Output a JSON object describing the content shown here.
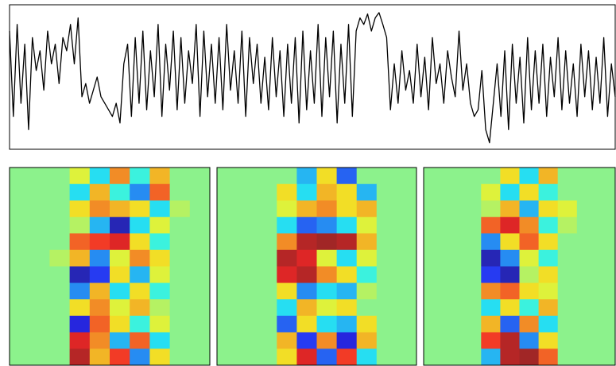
{
  "chart_data": [
    {
      "type": "line",
      "color": "#000000",
      "ylim": [
        -0.05,
        1.05
      ],
      "values": [
        0.85,
        0.2,
        0.9,
        0.3,
        0.75,
        0.1,
        0.8,
        0.55,
        0.7,
        0.4,
        0.85,
        0.6,
        0.75,
        0.45,
        0.8,
        0.7,
        0.9,
        0.6,
        0.95,
        0.35,
        0.45,
        0.3,
        0.4,
        0.5,
        0.35,
        0.3,
        0.25,
        0.2,
        0.3,
        0.15,
        0.6,
        0.75,
        0.2,
        0.8,
        0.3,
        0.85,
        0.25,
        0.7,
        0.35,
        0.9,
        0.2,
        0.75,
        0.4,
        0.85,
        0.25,
        0.8,
        0.3,
        0.7,
        0.45,
        0.9,
        0.2,
        0.85,
        0.35,
        0.75,
        0.3,
        0.8,
        0.25,
        0.9,
        0.4,
        0.7,
        0.3,
        0.85,
        0.2,
        0.8,
        0.45,
        0.75,
        0.3,
        0.65,
        0.25,
        0.8,
        0.35,
        0.7,
        0.2,
        0.75,
        0.3,
        0.8,
        0.15,
        0.85,
        0.25,
        0.7,
        0.3,
        0.9,
        0.2,
        0.8,
        0.35,
        0.85,
        0.15,
        0.75,
        0.3,
        0.9,
        0.2,
        0.85,
        0.95,
        0.9,
        0.98,
        0.85,
        0.95,
        0.99,
        0.9,
        0.8,
        0.25,
        0.6,
        0.3,
        0.7,
        0.4,
        0.55,
        0.3,
        0.75,
        0.35,
        0.65,
        0.25,
        0.8,
        0.45,
        0.6,
        0.3,
        0.7,
        0.5,
        0.35,
        0.85,
        0.4,
        0.6,
        0.3,
        0.2,
        0.25,
        0.55,
        0.1,
        0.0,
        0.3,
        0.6,
        0.2,
        0.7,
        0.1,
        0.75,
        0.3,
        0.65,
        0.15,
        0.8,
        0.25,
        0.7,
        0.3,
        0.75,
        0.2,
        0.65,
        0.35,
        0.8,
        0.25,
        0.7,
        0.3,
        0.6,
        0.2,
        0.75,
        0.35,
        0.7,
        0.25,
        0.65,
        0.3,
        0.8,
        0.2,
        0.6,
        0.35
      ]
    },
    {
      "type": "heatmap",
      "colormap": "jet",
      "clim": [
        -1,
        1
      ],
      "values": [
        [
          0,
          0,
          0,
          0.2,
          -0.3,
          0.5,
          -0.2,
          0.4,
          0,
          0
        ],
        [
          0,
          0,
          0,
          -0.3,
          0.4,
          -0.2,
          -0.5,
          0.6,
          0,
          0
        ],
        [
          0,
          0,
          0,
          0.3,
          0.5,
          0.4,
          0.3,
          -0.3,
          0.1,
          0
        ],
        [
          0,
          0,
          0,
          0.1,
          -0.4,
          -0.9,
          -0.3,
          0.2,
          0,
          0
        ],
        [
          0,
          0,
          0,
          0.6,
          0.7,
          0.8,
          0.3,
          -0.2,
          0,
          0
        ],
        [
          0,
          0,
          0.1,
          0.4,
          -0.5,
          0.2,
          0.5,
          0.3,
          0,
          0
        ],
        [
          0,
          0,
          0,
          -0.9,
          -0.7,
          0.3,
          -0.4,
          0.2,
          0,
          0
        ],
        [
          0,
          0,
          0,
          -0.5,
          0.4,
          -0.3,
          0.3,
          -0.2,
          0,
          0
        ],
        [
          0,
          0,
          0,
          0.3,
          0.5,
          0.2,
          0.4,
          0.1,
          0,
          0
        ],
        [
          0,
          0,
          0,
          -0.8,
          0.6,
          0.3,
          -0.2,
          0.2,
          0,
          0
        ],
        [
          0,
          0,
          0,
          0.8,
          0.5,
          -0.4,
          0.6,
          -0.3,
          0,
          0
        ],
        [
          0,
          0,
          0,
          0.9,
          0.4,
          0.7,
          -0.5,
          0.3,
          0,
          0
        ]
      ]
    },
    {
      "type": "heatmap",
      "colormap": "jet",
      "clim": [
        -1,
        1
      ],
      "values": [
        [
          0,
          0,
          0,
          0,
          -0.4,
          0.3,
          -0.6,
          0,
          0,
          0
        ],
        [
          0,
          0,
          0,
          0.3,
          -0.3,
          0.4,
          0.3,
          -0.4,
          0,
          0
        ],
        [
          0,
          0,
          0,
          0.2,
          0.4,
          0.5,
          0.3,
          0.4,
          0,
          0
        ],
        [
          0,
          0,
          0,
          -0.3,
          -0.6,
          -0.5,
          -0.3,
          0.2,
          0,
          0
        ],
        [
          0,
          0,
          0,
          0.5,
          0.9,
          0.95,
          0.9,
          0.4,
          0,
          0
        ],
        [
          0,
          0,
          0,
          0.9,
          0.8,
          0.2,
          -0.3,
          0.2,
          0,
          0
        ],
        [
          0,
          0,
          0,
          0.8,
          0.9,
          0.5,
          0.3,
          -0.2,
          0,
          0
        ],
        [
          0,
          0,
          0,
          0.3,
          -0.5,
          -0.3,
          -0.4,
          0.1,
          0,
          0
        ],
        [
          0,
          0,
          0,
          -0.3,
          0.4,
          0.2,
          0.3,
          0,
          0,
          0
        ],
        [
          0,
          0,
          0,
          -0.6,
          0.3,
          -0.3,
          -0.4,
          0.3,
          0,
          0
        ],
        [
          0,
          0,
          0,
          0.4,
          -0.7,
          0.5,
          -0.8,
          0.4,
          0,
          0
        ],
        [
          0,
          0,
          0,
          0.3,
          0.8,
          -0.6,
          0.7,
          -0.3,
          0,
          0
        ]
      ]
    },
    {
      "type": "heatmap",
      "colormap": "jet",
      "clim": [
        -1,
        1
      ],
      "values": [
        [
          0,
          0,
          0,
          0,
          0.3,
          -0.3,
          0.4,
          0,
          0,
          0
        ],
        [
          0,
          0,
          0,
          0.2,
          -0.3,
          0.3,
          -0.2,
          0,
          0,
          0
        ],
        [
          0,
          0,
          0,
          0.1,
          0.4,
          -0.4,
          0.3,
          0.2,
          0,
          0
        ],
        [
          0,
          0,
          0,
          0.6,
          0.8,
          0.5,
          -0.2,
          0.1,
          0,
          0
        ],
        [
          0,
          0,
          0,
          -0.5,
          0.3,
          0.6,
          0.3,
          0,
          0,
          0
        ],
        [
          0,
          0,
          0,
          -0.9,
          -0.5,
          0.2,
          -0.2,
          0,
          0,
          0
        ],
        [
          0,
          0,
          0,
          -0.7,
          -0.9,
          0.1,
          0.3,
          0,
          0,
          0
        ],
        [
          0,
          0,
          0,
          0.5,
          0.6,
          0.3,
          0.2,
          0,
          0,
          0
        ],
        [
          0,
          0,
          0,
          -0.3,
          0.3,
          -0.2,
          0.4,
          0,
          0,
          0
        ],
        [
          0,
          0,
          0,
          0.4,
          -0.6,
          0.5,
          -0.3,
          0,
          0,
          0
        ],
        [
          0,
          0,
          0,
          0.7,
          0.9,
          -0.5,
          0.3,
          0,
          0,
          0
        ],
        [
          0,
          0,
          0,
          -0.4,
          0.9,
          0.95,
          0.6,
          0,
          0,
          0
        ]
      ]
    }
  ]
}
